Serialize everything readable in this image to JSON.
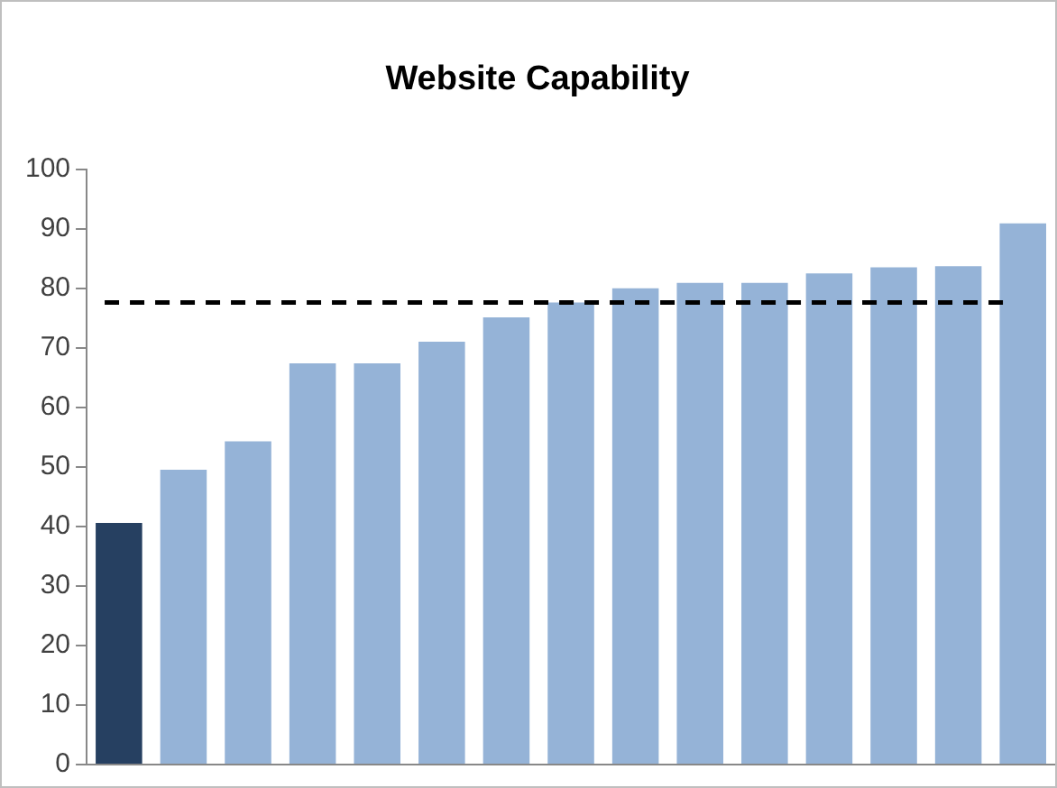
{
  "chart_data": {
    "type": "bar",
    "title": "Website Capability",
    "categories": [
      null,
      null,
      null,
      null,
      null,
      null,
      null,
      null,
      null,
      null,
      null,
      null,
      null,
      null,
      null
    ],
    "values": [
      40.6,
      49.5,
      54.3,
      67.4,
      67.4,
      71.0,
      75.1,
      77.6,
      80.0,
      80.9,
      80.9,
      82.5,
      83.5,
      83.7,
      90.9
    ],
    "colors": [
      "#264061",
      "#95b3d7",
      "#95b3d7",
      "#95b3d7",
      "#95b3d7",
      "#95b3d7",
      "#95b3d7",
      "#95b3d7",
      "#95b3d7",
      "#95b3d7",
      "#95b3d7",
      "#95b3d7",
      "#95b3d7",
      "#95b3d7",
      "#95b3d7"
    ],
    "ylim": [
      0,
      100
    ],
    "yticks": [
      0,
      10,
      20,
      30,
      40,
      50,
      60,
      70,
      80,
      90,
      100
    ],
    "ref_lines": [
      {
        "axis": "y",
        "value": 77.6,
        "color": "#000000",
        "line_style": "dashed"
      }
    ],
    "grid": false,
    "legend": false,
    "tick_labels": "y"
  }
}
